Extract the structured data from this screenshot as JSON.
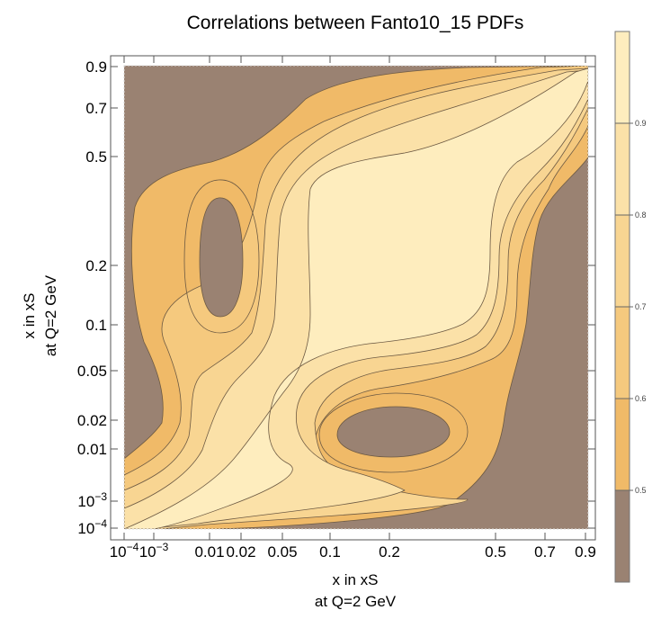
{
  "chart_data": {
    "type": "heatmap",
    "title": "Correlations between Fanto10_15 PDFs",
    "xlabel_line1": "x in xS",
    "xlabel_line2": "at Q=2 GeV",
    "ylabel_line1": "x in xS",
    "ylabel_line2": "at Q=2 GeV",
    "x_ticks": [
      "10^-4",
      "10^-3",
      "0.01",
      "0.02",
      "0.05",
      "0.1",
      "0.2",
      "0.5",
      "0.7",
      "0.9"
    ],
    "y_ticks": [
      "0.9",
      "0.7",
      "0.5",
      "0.2",
      "0.1",
      "0.05",
      "0.02",
      "0.01",
      "10^-3",
      "10^-4"
    ],
    "contour_levels": [
      0.5,
      0.6,
      0.7,
      0.8,
      0.9
    ],
    "legend_ticks": [
      "0.9",
      "0.8",
      "0.7",
      "0.6",
      "0.5"
    ],
    "legend_range": [
      0.4,
      1.0
    ],
    "colors": {
      "below_0.5": "#9a8272",
      "0.5-0.6": "#f0ba68",
      "0.6-0.7": "#f5c97e",
      "0.7-0.8": "#f8d592",
      "0.8-0.9": "#fbe1a8",
      "above_0.9": "#feedbe"
    }
  }
}
